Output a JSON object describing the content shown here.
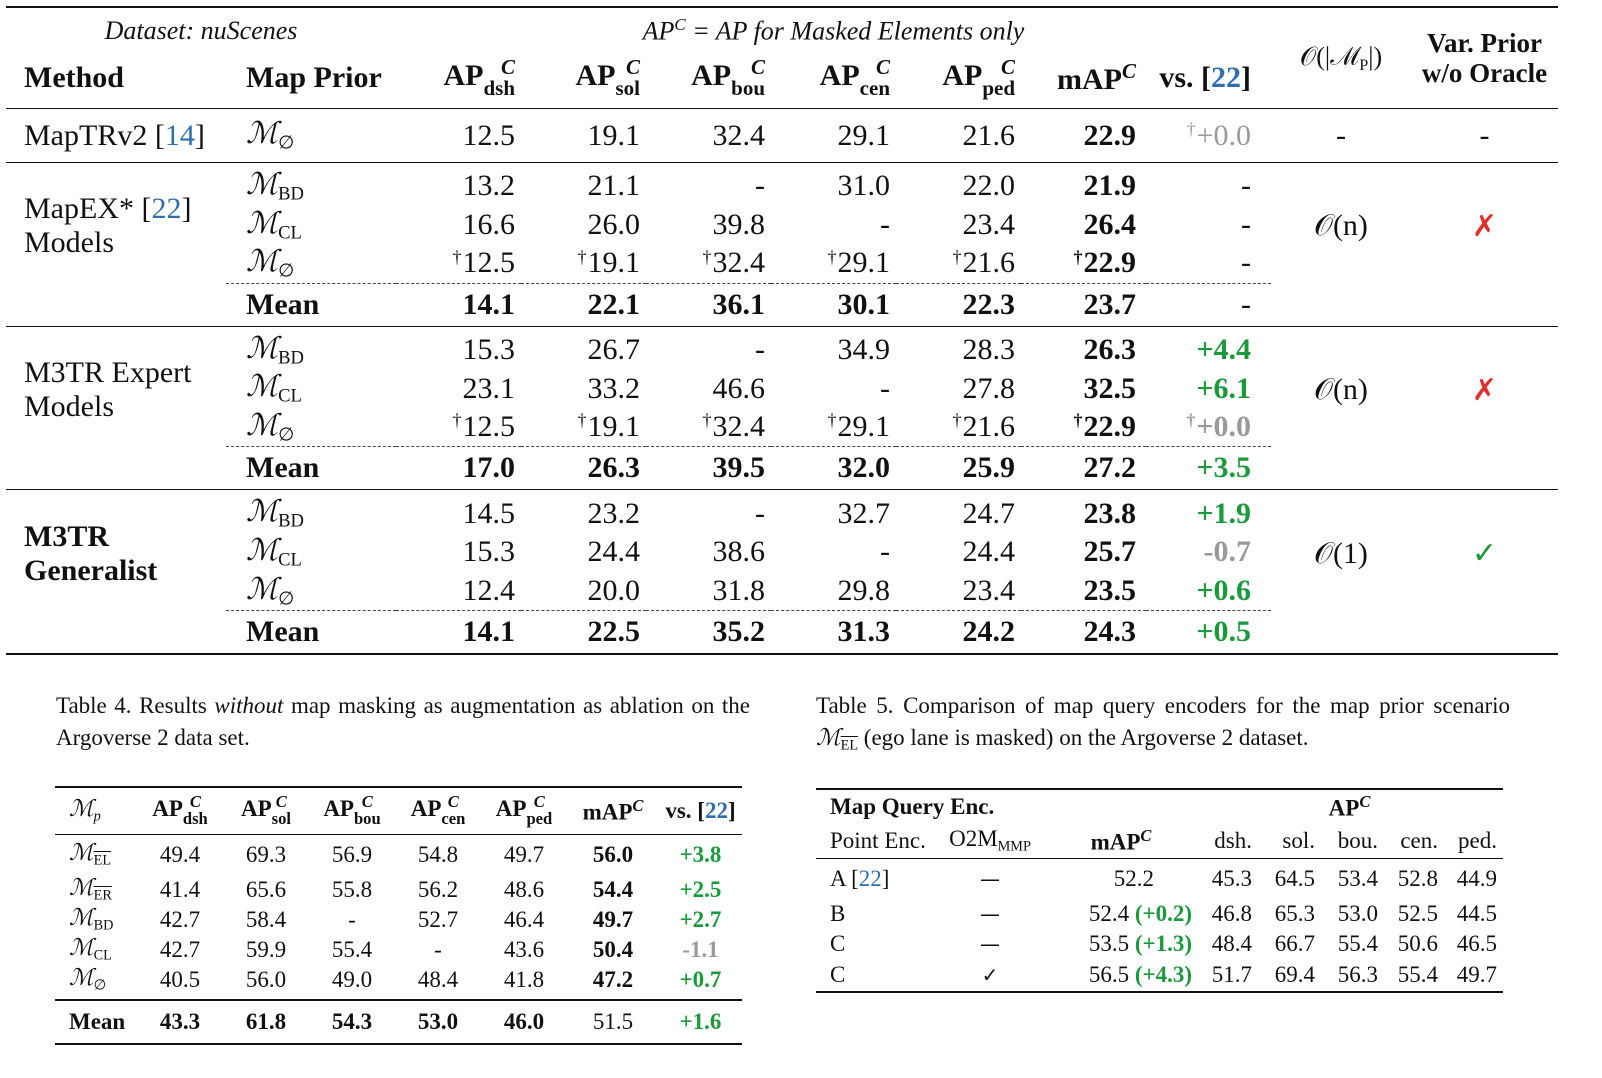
{
  "table3": {
    "header_dataset": "Dataset: nuScenes",
    "header_apc": "AP",
    "header_apc_sup": "C",
    "header_apc_desc": " = AP for Masked Elements only",
    "col_method": "Method",
    "col_map_prior": "Map Prior",
    "ap_label": "AP",
    "ap_sup": "C",
    "subs": [
      "dsh",
      "sol",
      "bou",
      "cen",
      "ped"
    ],
    "col_map": "mAP",
    "col_vs": "vs. [",
    "col_vs_ref": "22",
    "col_vs_close": "]",
    "col_complexity": "𝒪(|ℳ",
    "col_complexity_sub": "P",
    "col_complexity_close": "|)",
    "col_var_prior_1": "Var. Prior",
    "col_var_prior_2": "w/o Oracle",
    "baseline": {
      "method": "MapTRv2 [",
      "ref": "14",
      "method_close": "]",
      "prior": "ℳ",
      "prior_sub": "∅",
      "values": [
        "12.5",
        "19.1",
        "32.4",
        "29.1",
        "21.6"
      ],
      "map": "22.9",
      "vs_dagger": "†",
      "vs": "+0.0",
      "complexity": "-",
      "var_prior": "-"
    },
    "groups": [
      {
        "method_lines": [
          "MapEX* [",
          "Models"
        ],
        "method_ref": "22",
        "method_bold": false,
        "complexity": "𝒪(n)",
        "var_prior": "✗",
        "rows": [
          {
            "prior": "ℳ",
            "sub": "BD",
            "dag": false,
            "values": [
              "13.2",
              "21.1",
              "-",
              "31.0",
              "22.0"
            ],
            "map": "21.9",
            "vs": "-",
            "vs_cls": ""
          },
          {
            "prior": "ℳ",
            "sub": "CL",
            "dag": false,
            "values": [
              "16.6",
              "26.0",
              "39.8",
              "-",
              "23.4"
            ],
            "map": "26.4",
            "vs": "-",
            "vs_cls": ""
          },
          {
            "prior": "ℳ",
            "sub": "∅",
            "dag": true,
            "values": [
              "12.5",
              "19.1",
              "32.4",
              "29.1",
              "21.6"
            ],
            "map": "22.9",
            "vs": "-",
            "vs_cls": ""
          }
        ],
        "mean": {
          "label": "Mean",
          "values": [
            "14.1",
            "22.1",
            "36.1",
            "30.1",
            "22.3"
          ],
          "map": "23.7",
          "vs": "-",
          "vs_cls": ""
        }
      },
      {
        "method_lines": [
          "M3TR Expert",
          "Models"
        ],
        "method_ref": "",
        "method_bold": false,
        "complexity": "𝒪(n)",
        "var_prior": "✗",
        "rows": [
          {
            "prior": "ℳ",
            "sub": "BD",
            "dag": false,
            "values": [
              "15.3",
              "26.7",
              "-",
              "34.9",
              "28.3"
            ],
            "map": "26.3",
            "vs": "+4.4",
            "vs_cls": "g"
          },
          {
            "prior": "ℳ",
            "sub": "CL",
            "dag": false,
            "values": [
              "23.1",
              "33.2",
              "46.6",
              "-",
              "27.8"
            ],
            "map": "32.5",
            "vs": "+6.1",
            "vs_cls": "g"
          },
          {
            "prior": "ℳ",
            "sub": "∅",
            "dag": true,
            "values": [
              "12.5",
              "19.1",
              "32.4",
              "29.1",
              "21.6"
            ],
            "map": "22.9",
            "vs": "+0.0",
            "vs_cls": "gr",
            "vs_dag": true
          }
        ],
        "mean": {
          "label": "Mean",
          "values": [
            "17.0",
            "26.3",
            "39.5",
            "32.0",
            "25.9"
          ],
          "map": "27.2",
          "vs": "+3.5",
          "vs_cls": "g"
        }
      },
      {
        "method_lines": [
          "M3TR",
          "Generalist"
        ],
        "method_ref": "",
        "method_bold": true,
        "complexity": "𝒪(1)",
        "var_prior": "✓",
        "rows": [
          {
            "prior": "ℳ",
            "sub": "BD",
            "dag": false,
            "values": [
              "14.5",
              "23.2",
              "-",
              "32.7",
              "24.7"
            ],
            "map": "23.8",
            "vs": "+1.9",
            "vs_cls": "g"
          },
          {
            "prior": "ℳ",
            "sub": "CL",
            "dag": false,
            "values": [
              "15.3",
              "24.4",
              "38.6",
              "-",
              "24.4"
            ],
            "map": "25.7",
            "vs": "-0.7",
            "vs_cls": "gr"
          },
          {
            "prior": "ℳ",
            "sub": "∅",
            "dag": false,
            "values": [
              "12.4",
              "20.0",
              "31.8",
              "29.8",
              "23.4"
            ],
            "map": "23.5",
            "vs": "+0.6",
            "vs_cls": "g"
          }
        ],
        "mean": {
          "label": "Mean",
          "values": [
            "14.1",
            "22.5",
            "35.2",
            "31.3",
            "24.2"
          ],
          "map": "24.3",
          "vs": "+0.5",
          "vs_cls": "g"
        }
      }
    ]
  },
  "caption4": {
    "prefix": "Table 4. Results ",
    "emph": "without",
    "suffix": " map masking as augmentation as ablation on the Argoverse 2 data set."
  },
  "caption5": {
    "prefix": "Table 5.  Comparison of map query encoders for the map prior scenario ",
    "sym": "ℳ",
    "sym_sub": "EL",
    "suffix": " (ego lane is masked) on the Argoverse 2 dataset."
  },
  "table4": {
    "col_mp": "ℳ",
    "col_mp_sub": "p",
    "subs": [
      "dsh",
      "sol",
      "bou",
      "cen",
      "ped"
    ],
    "rows": [
      {
        "prior": "ℳ",
        "sub": "EL",
        "over": true,
        "values": [
          "49.4",
          "69.3",
          "56.9",
          "54.8",
          "49.7"
        ],
        "map": "56.0",
        "vs": "+3.8",
        "vs_cls": "g"
      },
      {
        "prior": "ℳ",
        "sub": "ER",
        "over": true,
        "values": [
          "41.4",
          "65.6",
          "55.8",
          "56.2",
          "48.6"
        ],
        "map": "54.4",
        "vs": "+2.5",
        "vs_cls": "g"
      },
      {
        "prior": "ℳ",
        "sub": "BD",
        "over": false,
        "values": [
          "42.7",
          "58.4",
          "-",
          "52.7",
          "46.4"
        ],
        "map": "49.7",
        "vs": "+2.7",
        "vs_cls": "g"
      },
      {
        "prior": "ℳ",
        "sub": "CL",
        "over": false,
        "values": [
          "42.7",
          "59.9",
          "55.4",
          "-",
          "43.6"
        ],
        "map": "50.4",
        "vs": "-1.1",
        "vs_cls": "gr"
      },
      {
        "prior": "ℳ",
        "sub": "∅",
        "over": false,
        "values": [
          "40.5",
          "56.0",
          "49.0",
          "48.4",
          "41.8"
        ],
        "map": "47.2",
        "vs": "+0.7",
        "vs_cls": "g"
      }
    ],
    "mean": {
      "label": "Mean",
      "values": [
        "43.3",
        "61.8",
        "54.3",
        "53.0",
        "46.0"
      ],
      "map": "51.5",
      "vs": "+1.6"
    }
  },
  "table5": {
    "header_group": "Map Query Enc.",
    "header_ap": "AP",
    "header_ap_sup": "C",
    "col_point": "Point Enc.",
    "col_o2m": "O2M",
    "col_o2m_sub": "MMP",
    "col_map": "mAP",
    "col_map_sup": "C",
    "cols": [
      "dsh.",
      "sol.",
      "bou.",
      "cen.",
      "ped."
    ],
    "rows": [
      {
        "enc": "A [",
        "ref": "22",
        "close": "]",
        "o2m": "—",
        "map": "52.2",
        "delta": "",
        "values": [
          "45.3",
          "64.5",
          "53.4",
          "52.8",
          "44.9"
        ]
      },
      {
        "enc": "B",
        "ref": "",
        "close": "",
        "o2m": "—",
        "map": "52.4",
        "delta": "(+0.2)",
        "values": [
          "46.8",
          "65.3",
          "53.0",
          "52.5",
          "44.5"
        ]
      },
      {
        "enc": "C",
        "ref": "",
        "close": "",
        "o2m": "—",
        "map": "53.5",
        "delta": "(+1.3)",
        "values": [
          "48.4",
          "66.7",
          "55.4",
          "50.6",
          "46.5"
        ]
      },
      {
        "enc": "C",
        "ref": "",
        "close": "",
        "o2m": "✓",
        "map": "56.5",
        "delta": "(+4.3)",
        "values": [
          "51.7",
          "69.4",
          "56.3",
          "55.4",
          "49.7"
        ]
      }
    ]
  }
}
